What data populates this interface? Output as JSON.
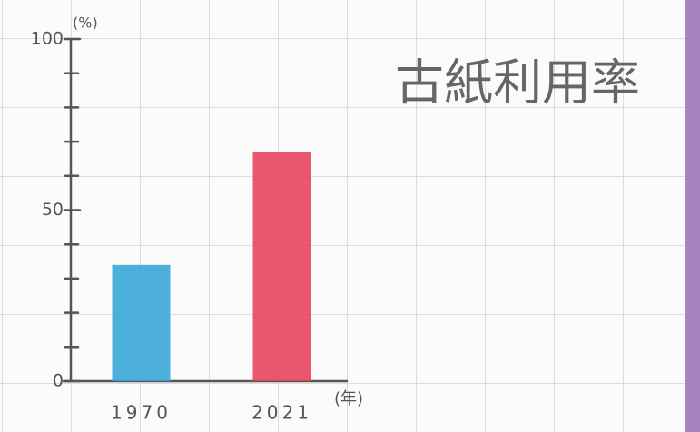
{
  "chart_data": {
    "type": "bar",
    "title": "古紙利用率",
    "y_unit": "(%)",
    "x_unit": "(年)",
    "categories": [
      "1970",
      "2021"
    ],
    "values": [
      34,
      67
    ],
    "colors": [
      "#3aa6d8",
      "#e8445e"
    ],
    "ylim": [
      0,
      100
    ],
    "yticks": [
      0,
      50,
      100
    ],
    "yminorticks": [
      10,
      20,
      30,
      40,
      60,
      70,
      80,
      90
    ]
  }
}
